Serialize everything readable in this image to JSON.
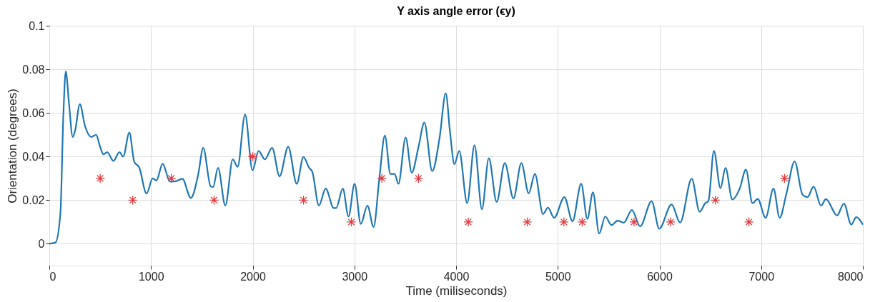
{
  "chart_data": {
    "type": "line",
    "title": "Y axis angle error (ϵy)",
    "xlabel": "Time (miliseconds)",
    "ylabel": "Orientation (degrees)",
    "xlim": [
      0,
      8000
    ],
    "xticks": [
      0,
      1000,
      2000,
      3000,
      4000,
      5000,
      6000,
      7000,
      8000
    ],
    "ylim": [
      -0.01,
      0.1
    ],
    "yticks": [
      0,
      0.02,
      0.04,
      0.06,
      0.08,
      0.1
    ],
    "grid": true,
    "legend": false,
    "series": [
      {
        "color": "#1f77b4",
        "marker": "none",
        "line_style": "solid",
        "x": [
          0,
          61,
          109,
          138,
          162,
          194,
          230,
          254,
          300,
          351,
          412,
          460,
          496,
          533,
          569,
          630,
          690,
          726,
          787,
          835,
          884,
          956,
          1017,
          1053,
          1114,
          1186,
          1235,
          1308,
          1392,
          1465,
          1513,
          1586,
          1610,
          1659,
          1731,
          1804,
          1852,
          1925,
          1998,
          2058,
          2119,
          2191,
          2264,
          2349,
          2433,
          2499,
          2555,
          2586,
          2651,
          2717,
          2797,
          2821,
          2886,
          2942,
          3002,
          3063,
          3128,
          3189,
          3245,
          3300,
          3354,
          3395,
          3433,
          3504,
          3564,
          3632,
          3688,
          3765,
          3838,
          3898,
          3942,
          3983,
          4031,
          4109,
          4181,
          4254,
          4322,
          4399,
          4479,
          4564,
          4642,
          4714,
          4775,
          4855,
          4903,
          4964,
          5065,
          5145,
          5230,
          5291,
          5346,
          5407,
          5467,
          5528,
          5588,
          5649,
          5729,
          5809,
          5923,
          5998,
          6119,
          6203,
          6317,
          6395,
          6450,
          6482,
          6535,
          6600,
          6649,
          6717,
          6789,
          6850,
          6915,
          6966,
          7044,
          7121,
          7182,
          7249,
          7329,
          7407,
          7455,
          7516,
          7588,
          7637,
          7746,
          7814,
          7886,
          7935,
          8000
        ],
        "values": [
          0,
          0.0006,
          0.014,
          0.059,
          0.079,
          0.064,
          0.049,
          0.052,
          0.064,
          0.054,
          0.049,
          0.05,
          0.045,
          0.041,
          0.042,
          0.038,
          0.042,
          0.04,
          0.051,
          0.0376,
          0.035,
          0.023,
          0.03,
          0.029,
          0.0367,
          0.0286,
          0.0286,
          0.0298,
          0.021,
          0.032,
          0.044,
          0.0264,
          0.026,
          0.0348,
          0.0175,
          0.0387,
          0.0353,
          0.0593,
          0.0337,
          0.0426,
          0.0387,
          0.044,
          0.0309,
          0.0445,
          0.0275,
          0.0398,
          0.0348,
          0.033,
          0.0175,
          0.0253,
          0.0164,
          0.0164,
          0.0253,
          0.0125,
          0.0275,
          0.0091,
          0.0175,
          0.0077,
          0.0298,
          0.0496,
          0.032,
          0.032,
          0.0275,
          0.0487,
          0.0326,
          0.0448,
          0.0556,
          0.0333,
          0.0487,
          0.069,
          0.0504,
          0.0365,
          0.0426,
          0.0186,
          0.0452,
          0.0158,
          0.0392,
          0.0192,
          0.037,
          0.0208,
          0.037,
          0.0231,
          0.032,
          0.0136,
          0.0166,
          0.0119,
          0.0214,
          0.0103,
          0.0275,
          0.0114,
          0.0236,
          0.0047,
          0.0125,
          0.0086,
          0.0106,
          0.0097,
          0.0155,
          0.008,
          0.0195,
          0.0069,
          0.018,
          0.0097,
          0.0298,
          0.0147,
          0.0186,
          0.0197,
          0.0426,
          0.0255,
          0.0348,
          0.0203,
          0.0253,
          0.034,
          0.0186,
          0.0206,
          0.0119,
          0.0253,
          0.0119,
          0.0231,
          0.0378,
          0.0225,
          0.0214,
          0.0262,
          0.0175,
          0.0205,
          0.013,
          0.0184,
          0.0088,
          0.0122,
          0.0088
        ]
      },
      {
        "type": "scatter",
        "color": "#e03a3e",
        "marker": "cross",
        "x": [
          500,
          820,
          1200,
          1620,
          2000,
          2500,
          2970,
          3270,
          3630,
          4120,
          4700,
          5060,
          5240,
          5750,
          6110,
          6550,
          6880,
          7230
        ],
        "values": [
          0.03,
          0.02,
          0.03,
          0.02,
          0.04,
          0.02,
          0.01,
          0.03,
          0.03,
          0.01,
          0.01,
          0.01,
          0.01,
          0.01,
          0.01,
          0.02,
          0.01,
          0.03
        ]
      }
    ]
  }
}
